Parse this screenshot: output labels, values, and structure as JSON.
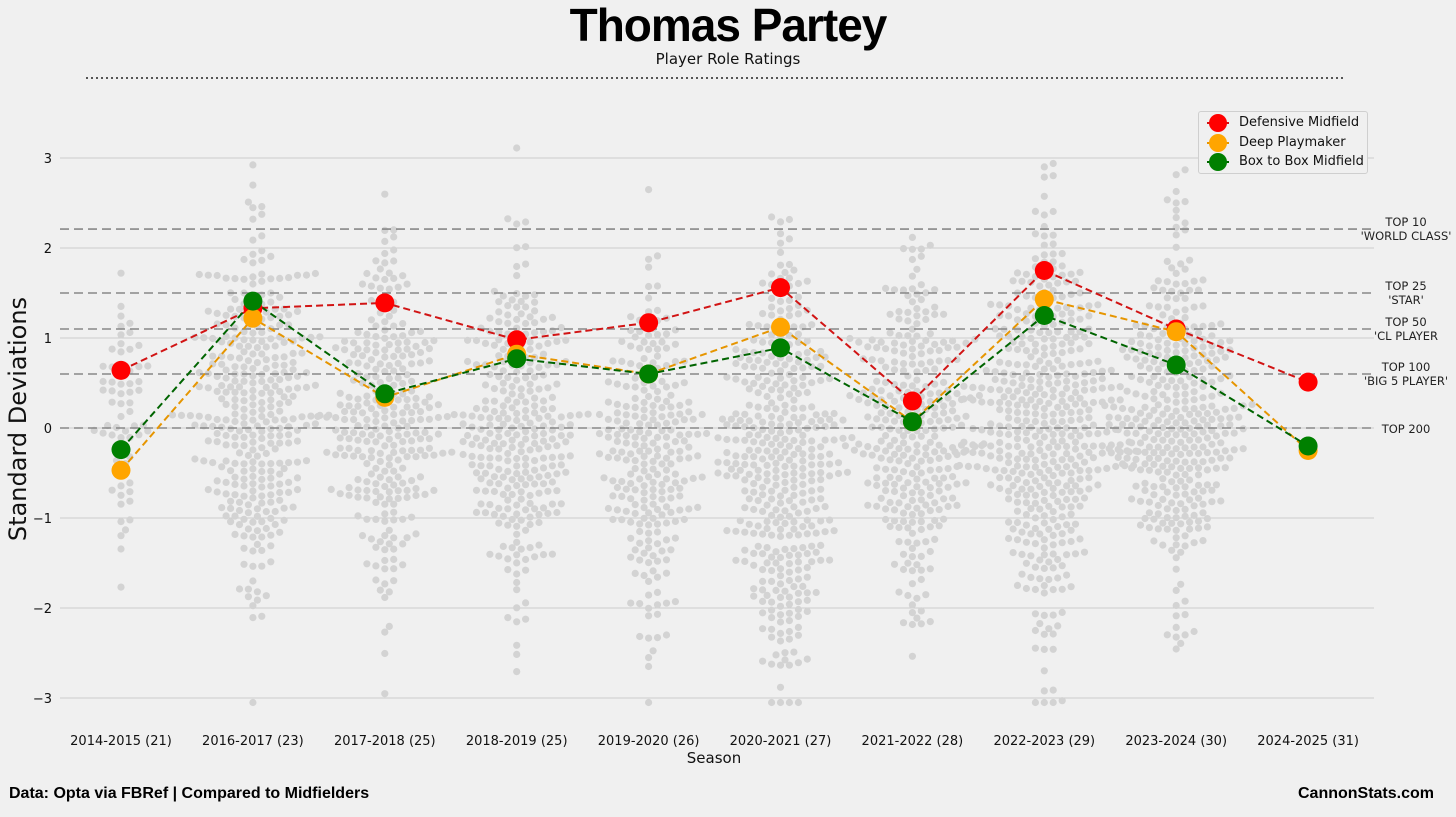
{
  "title": "Thomas Partey",
  "subtitle": "Player Role Ratings",
  "footer_left": "Data: Opta via FBRef | Compared to Midfielders",
  "footer_right": "CannonStats.com",
  "chart_data": {
    "type": "line",
    "title": "Thomas Partey",
    "subtitle": "Player Role Ratings",
    "xlabel": "Season",
    "ylabel": "Standard Deviations",
    "ylim": [
      -3.3,
      3.35
    ],
    "yticks": [
      3,
      2,
      1,
      0,
      -1,
      -2,
      -3
    ],
    "ytick_labels": [
      "3",
      "2",
      "1",
      "0",
      "−1",
      "−2",
      "−3"
    ],
    "grid": true,
    "legend_position": "top-right",
    "categories": [
      "2014-2015 (21)",
      "2016-2017 (23)",
      "2017-2018 (25)",
      "2018-2019 (25)",
      "2019-2020 (26)",
      "2020-2021 (27)",
      "2021-2022 (28)",
      "2022-2023 (29)",
      "2023-2024 (30)",
      "2024-2025 (31)"
    ],
    "series": [
      {
        "name": "Defensive Midfield",
        "color": "#ff0000",
        "line_color": "#d11414",
        "values": [
          0.64,
          1.33,
          1.39,
          0.98,
          1.17,
          1.56,
          0.3,
          1.75,
          1.1,
          0.51
        ]
      },
      {
        "name": "Deep Playmaker",
        "color": "#ffa500",
        "line_color": "#e69500",
        "values": [
          -0.47,
          1.22,
          0.34,
          0.82,
          0.6,
          1.12,
          0.07,
          1.43,
          1.07,
          -0.25
        ]
      },
      {
        "name": "Box to Box Midfield",
        "color": "#008000",
        "line_color": "#006400",
        "values": [
          -0.24,
          1.41,
          0.38,
          0.77,
          0.6,
          0.89,
          0.07,
          1.25,
          0.7,
          -0.2
        ]
      }
    ],
    "reference_lines": [
      {
        "value": 2.21,
        "label_lines": [
          "TOP 10",
          "'WORLD CLASS'"
        ]
      },
      {
        "value": 1.5,
        "label_lines": [
          "TOP 25",
          "'STAR'"
        ]
      },
      {
        "value": 1.1,
        "label_lines": [
          "TOP 50",
          "'CL PLAYER"
        ]
      },
      {
        "value": 0.6,
        "label_lines": [
          "TOP 100",
          "'BIG 5 PLAYER'"
        ]
      },
      {
        "value": 0.0,
        "label_lines": [
          "TOP 200"
        ]
      }
    ],
    "background_distribution": {
      "color": "#d3d3d3",
      "groups": [
        {
          "n": 65,
          "mean": 0.2,
          "sd": 0.75
        },
        {
          "n": 340,
          "mean": 0.2,
          "sd": 1.0
        },
        {
          "n": 285,
          "mean": 0.1,
          "sd": 0.9
        },
        {
          "n": 300,
          "mean": 0.0,
          "sd": 0.95
        },
        {
          "n": 255,
          "mean": -0.35,
          "sd": 0.95
        },
        {
          "n": 400,
          "mean": -0.4,
          "sd": 1.15
        },
        {
          "n": 310,
          "mean": -0.05,
          "sd": 0.95
        },
        {
          "n": 470,
          "mean": 0.05,
          "sd": 1.05
        },
        {
          "n": 370,
          "mean": 0.05,
          "sd": 0.95
        },
        {
          "n": 0,
          "mean": 0.0,
          "sd": 1.0
        }
      ]
    }
  }
}
